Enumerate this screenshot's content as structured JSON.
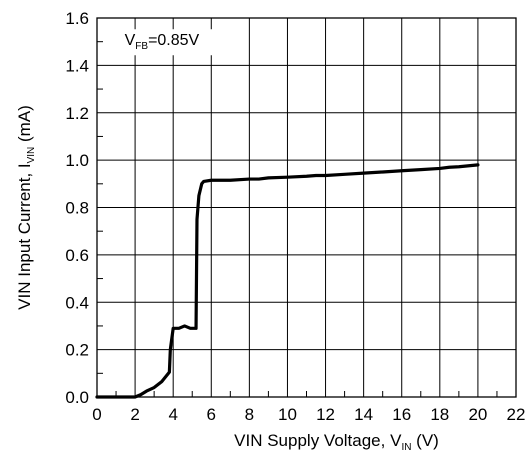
{
  "chart_data": {
    "type": "line",
    "title": "",
    "xlabel": {
      "main": "VIN Supply Voltage, V",
      "sub": "IN",
      "suffix": " (V)"
    },
    "ylabel": {
      "main": "VIN Input Current, I",
      "sub": "VIN",
      "suffix": " (mA)"
    },
    "xlim": [
      0,
      22
    ],
    "ylim": [
      0,
      1.6
    ],
    "x_ticks": [
      "0",
      "2",
      "4",
      "6",
      "8",
      "10",
      "12",
      "14",
      "16",
      "18",
      "20",
      "22"
    ],
    "y_ticks": [
      "0.0",
      "0.2",
      "0.4",
      "0.6",
      "0.8",
      "1.0",
      "1.2",
      "1.4",
      "1.6"
    ],
    "grid": true,
    "annotation": {
      "main": "V",
      "sub": "FB",
      "suffix": "=0.85V"
    },
    "series": [
      {
        "color": "#000000",
        "x": [
          0,
          1.0,
          2.0,
          2.3,
          2.6,
          3.0,
          3.4,
          3.8,
          3.85,
          4.0,
          4.3,
          4.6,
          4.9,
          5.2,
          5.25,
          5.35,
          5.5,
          5.6,
          6.0,
          7.0,
          8.0,
          8.5,
          9.0,
          10.0,
          11.0,
          11.5,
          12.0,
          13.0,
          14.0,
          15.0,
          16.0,
          17.0,
          18.0,
          18.5,
          19.0,
          20.0
        ],
        "y": [
          0.0,
          0.0,
          0.0,
          0.01,
          0.025,
          0.04,
          0.065,
          0.105,
          0.2,
          0.29,
          0.29,
          0.3,
          0.29,
          0.29,
          0.75,
          0.85,
          0.9,
          0.91,
          0.915,
          0.915,
          0.92,
          0.92,
          0.925,
          0.928,
          0.932,
          0.935,
          0.935,
          0.94,
          0.945,
          0.95,
          0.955,
          0.96,
          0.965,
          0.97,
          0.972,
          0.98
        ]
      }
    ]
  }
}
